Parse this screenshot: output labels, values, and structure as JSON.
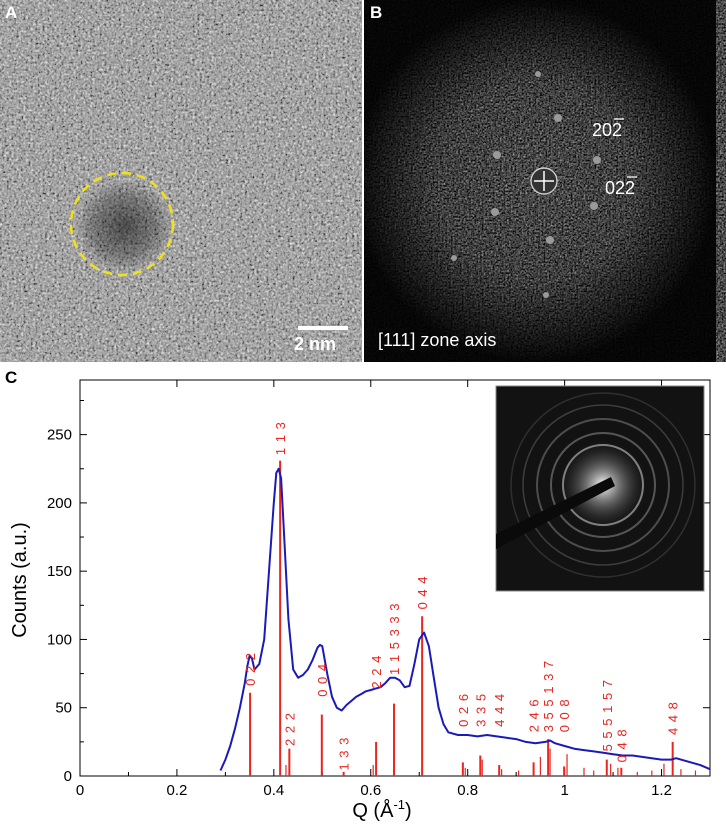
{
  "panels": {
    "a": {
      "letter": "A",
      "scale_bar_label": "2 nm",
      "circle_color": "#f2e21a"
    },
    "b": {
      "letter": "B",
      "zone_axis_label": "[111] zone axis",
      "reflections": [
        "20̅2̅",
        "022̅"
      ],
      "reflection_labels": {
        "first_digits": "20",
        "first_bar": "2",
        "second_digits": "02",
        "second_bar": "2"
      }
    },
    "c": {
      "letter": "C"
    }
  },
  "chart_data": {
    "type": "line",
    "xlabel": "Q  (Å",
    "xlabel_sup": "-1",
    "xlabel_close": ")",
    "ylabel": "Counts (a.u.)",
    "xlim": [
      0,
      1.3
    ],
    "ylim": [
      0,
      290
    ],
    "x_ticks": [
      0,
      0.2,
      0.4,
      0.6,
      0.8,
      1,
      1.2
    ],
    "x_tick_labels": [
      "0",
      "0.2",
      "0.4",
      "0.6",
      "0.8",
      "1",
      "1.2"
    ],
    "y_ticks": [
      0,
      50,
      100,
      150,
      200,
      250
    ],
    "y_tick_labels": [
      "0",
      "50",
      "100",
      "150",
      "200",
      "250"
    ],
    "line_color": "#1a1ab8",
    "stick_color": "#e8251f",
    "series": [
      {
        "x": [
          0.29,
          0.3,
          0.31,
          0.32,
          0.33,
          0.34,
          0.345,
          0.35,
          0.355,
          0.36,
          0.37,
          0.38,
          0.39,
          0.4,
          0.405,
          0.41,
          0.415,
          0.42,
          0.43,
          0.44,
          0.45,
          0.46,
          0.47,
          0.48,
          0.49,
          0.495,
          0.5,
          0.51,
          0.52,
          0.53,
          0.54,
          0.55,
          0.56,
          0.57,
          0.58,
          0.59,
          0.6,
          0.61,
          0.62,
          0.63,
          0.64,
          0.65,
          0.66,
          0.67,
          0.68,
          0.69,
          0.7,
          0.71,
          0.72,
          0.73,
          0.74,
          0.75,
          0.76,
          0.78,
          0.8,
          0.82,
          0.84,
          0.86,
          0.88,
          0.9,
          0.92,
          0.94,
          0.96,
          0.97,
          0.98,
          1.0,
          1.02,
          1.04,
          1.06,
          1.08,
          1.1,
          1.12,
          1.14,
          1.16,
          1.18,
          1.2,
          1.22,
          1.23,
          1.24,
          1.26,
          1.28,
          1.3
        ],
        "y": [
          4,
          12,
          22,
          35,
          50,
          68,
          80,
          88,
          86,
          78,
          82,
          100,
          150,
          200,
          222,
          225,
          218,
          185,
          115,
          78,
          72,
          74,
          78,
          85,
          94,
          96,
          95,
          75,
          58,
          50,
          48,
          52,
          55,
          58,
          60,
          62,
          63,
          64,
          65,
          68,
          72,
          72,
          70,
          65,
          66,
          82,
          100,
          105,
          95,
          72,
          50,
          38,
          32,
          30,
          30,
          29,
          30,
          29,
          28,
          27,
          25,
          24,
          25,
          26,
          24,
          22,
          20,
          19,
          18,
          17,
          16,
          15,
          15,
          14,
          13,
          12,
          12,
          13,
          12,
          10,
          8,
          5
        ]
      }
    ],
    "sticks": [
      {
        "x": 0.351,
        "y": 61,
        "label": "0 2 2"
      },
      {
        "x": 0.413,
        "y": 231,
        "label": "1 1 3"
      },
      {
        "x": 0.432,
        "y": 20,
        "label": "2 2 2"
      },
      {
        "x": 0.499,
        "y": 45,
        "label": "0 0 4"
      },
      {
        "x": 0.544,
        "y": 3,
        "label": "1 3 3"
      },
      {
        "x": 0.611,
        "y": 25,
        "label": "2 2 4"
      },
      {
        "x": 0.648,
        "y": 53,
        "label": "1 1 5 3 3 3"
      },
      {
        "x": 0.706,
        "y": 117,
        "label": "0 4 4"
      },
      {
        "x": 0.79,
        "y": 10,
        "label": "0 2 6"
      },
      {
        "x": 0.826,
        "y": 15,
        "label": "3 3 5"
      },
      {
        "x": 0.865,
        "y": 8,
        "label": "4 4 4"
      },
      {
        "x": 0.936,
        "y": 10,
        "label": "2 4 6"
      },
      {
        "x": 0.966,
        "y": 27,
        "label": "3 5 5 1 3 7"
      },
      {
        "x": 0.999,
        "y": 7,
        "label": "0 0 8"
      },
      {
        "x": 1.087,
        "y": 12,
        "label": "5 5 5 1 5 7"
      },
      {
        "x": 1.117,
        "y": 6,
        "label": "0 4 8"
      },
      {
        "x": 1.223,
        "y": 25,
        "label": "4 4 8"
      }
    ],
    "minor_sticks": [
      {
        "x": 0.425,
        "y": 8
      },
      {
        "x": 0.605,
        "y": 8
      },
      {
        "x": 0.795,
        "y": 6
      },
      {
        "x": 0.83,
        "y": 12
      },
      {
        "x": 0.87,
        "y": 5
      },
      {
        "x": 0.905,
        "y": 4
      },
      {
        "x": 0.95,
        "y": 14
      },
      {
        "x": 0.97,
        "y": 20
      },
      {
        "x": 1.005,
        "y": 16
      },
      {
        "x": 1.04,
        "y": 6
      },
      {
        "x": 1.06,
        "y": 4
      },
      {
        "x": 1.095,
        "y": 9
      },
      {
        "x": 1.11,
        "y": 6
      },
      {
        "x": 1.15,
        "y": 3
      },
      {
        "x": 1.18,
        "y": 4
      },
      {
        "x": 1.205,
        "y": 9
      },
      {
        "x": 1.24,
        "y": 5
      },
      {
        "x": 1.27,
        "y": 4
      }
    ]
  }
}
